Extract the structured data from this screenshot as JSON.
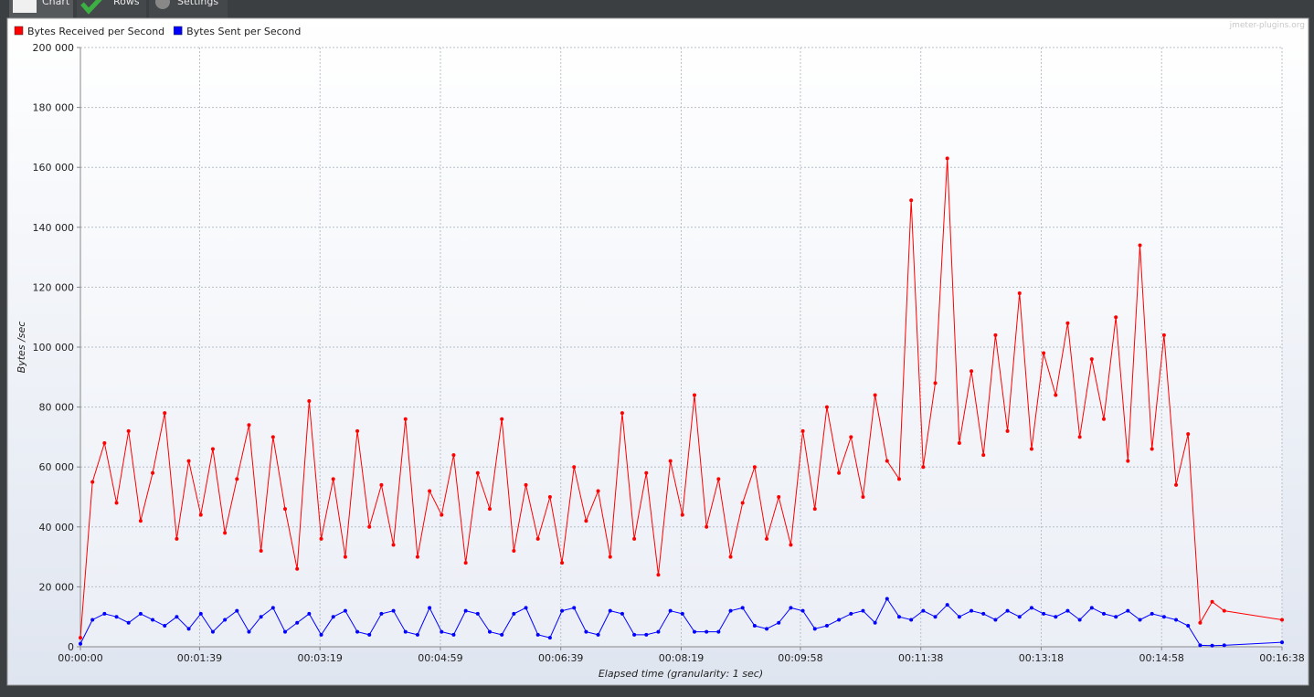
{
  "tabs": [
    "Chart",
    "Rows",
    "Settings"
  ],
  "watermark": "jmeter-plugins.org",
  "chart_data": {
    "type": "line",
    "x_label": "Elapsed time (granularity: 1 sec)",
    "y_label": "Bytes /sec",
    "x": [
      0,
      10,
      20,
      30,
      40,
      50,
      60,
      70,
      80,
      90,
      100,
      110,
      120,
      130,
      140,
      150,
      160,
      170,
      180,
      190,
      200,
      210,
      220,
      230,
      240,
      250,
      260,
      270,
      280,
      290,
      300,
      310,
      320,
      330,
      340,
      350,
      360,
      370,
      380,
      390,
      400,
      410,
      420,
      430,
      440,
      450,
      460,
      470,
      480,
      490,
      500,
      510,
      520,
      530,
      540,
      550,
      560,
      570,
      580,
      590,
      600,
      610,
      620,
      630,
      640,
      650,
      660,
      670,
      680,
      690,
      700,
      710,
      720,
      730,
      740,
      750,
      760,
      770,
      780,
      790,
      800,
      810,
      820,
      830,
      840,
      850,
      860,
      870,
      880,
      890,
      900,
      910,
      920,
      930,
      940,
      950,
      998
    ],
    "series": [
      {
        "name": "Bytes Received per Second",
        "color": "#ff0000",
        "values": [
          3000,
          55000,
          68000,
          48000,
          72000,
          42000,
          58000,
          78000,
          36000,
          62000,
          44000,
          66000,
          38000,
          56000,
          74000,
          32000,
          70000,
          46000,
          26000,
          82000,
          36000,
          56000,
          30000,
          72000,
          40000,
          54000,
          34000,
          76000,
          30000,
          52000,
          44000,
          64000,
          28000,
          58000,
          46000,
          76000,
          32000,
          54000,
          36000,
          50000,
          28000,
          60000,
          42000,
          52000,
          30000,
          78000,
          36000,
          58000,
          24000,
          62000,
          44000,
          84000,
          40000,
          56000,
          30000,
          48000,
          60000,
          36000,
          50000,
          34000,
          72000,
          46000,
          80000,
          58000,
          70000,
          50000,
          84000,
          62000,
          56000,
          149000,
          60000,
          88000,
          163000,
          68000,
          92000,
          64000,
          104000,
          72000,
          118000,
          66000,
          98000,
          84000,
          108000,
          70000,
          96000,
          76000,
          110000,
          62000,
          134000,
          66000,
          104000,
          54000,
          71000,
          8000,
          15000,
          12000,
          9000
        ]
      },
      {
        "name": "Bytes Sent per Second",
        "color": "#0000ff",
        "values": [
          1000,
          9000,
          11000,
          10000,
          8000,
          11000,
          9000,
          7000,
          10000,
          6000,
          11000,
          5000,
          9000,
          12000,
          5000,
          10000,
          13000,
          5000,
          8000,
          11000,
          4000,
          10000,
          12000,
          5000,
          4000,
          11000,
          12000,
          5000,
          4000,
          13000,
          5000,
          4000,
          12000,
          11000,
          5000,
          4000,
          11000,
          13000,
          4000,
          3000,
          12000,
          13000,
          5000,
          4000,
          12000,
          11000,
          4000,
          4000,
          5000,
          12000,
          11000,
          5000,
          5000,
          5000,
          12000,
          13000,
          7000,
          6000,
          8000,
          13000,
          12000,
          6000,
          7000,
          9000,
          11000,
          12000,
          8000,
          16000,
          10000,
          9000,
          12000,
          10000,
          14000,
          10000,
          12000,
          11000,
          9000,
          12000,
          10000,
          13000,
          11000,
          10000,
          12000,
          9000,
          13000,
          11000,
          10000,
          12000,
          9000,
          11000,
          10000,
          9000,
          7000,
          500,
          400,
          500,
          1500
        ]
      }
    ],
    "xlim": [
      0,
      998
    ],
    "ylim": [
      0,
      200000
    ],
    "xticks": [
      {
        "value": 0,
        "label": "00:00:00"
      },
      {
        "value": 99,
        "label": "00:01:39"
      },
      {
        "value": 199,
        "label": "00:03:19"
      },
      {
        "value": 299,
        "label": "00:04:59"
      },
      {
        "value": 399,
        "label": "00:06:39"
      },
      {
        "value": 499,
        "label": "00:08:19"
      },
      {
        "value": 598,
        "label": "00:09:58"
      },
      {
        "value": 698,
        "label": "00:11:38"
      },
      {
        "value": 798,
        "label": "00:13:18"
      },
      {
        "value": 898,
        "label": "00:14:58"
      },
      {
        "value": 998,
        "label": "00:16:38"
      }
    ],
    "yticks": [
      {
        "value": 0,
        "label": "0"
      },
      {
        "value": 20000,
        "label": "20 000"
      },
      {
        "value": 40000,
        "label": "40 000"
      },
      {
        "value": 60000,
        "label": "60 000"
      },
      {
        "value": 80000,
        "label": "80 000"
      },
      {
        "value": 100000,
        "label": "100 000"
      },
      {
        "value": 120000,
        "label": "120 000"
      },
      {
        "value": 140000,
        "label": "140 000"
      },
      {
        "value": 160000,
        "label": "160 000"
      },
      {
        "value": 180000,
        "label": "180 000"
      },
      {
        "value": 200000,
        "label": "200 000"
      }
    ],
    "grid": true,
    "legend": "top-left",
    "markers": true
  }
}
